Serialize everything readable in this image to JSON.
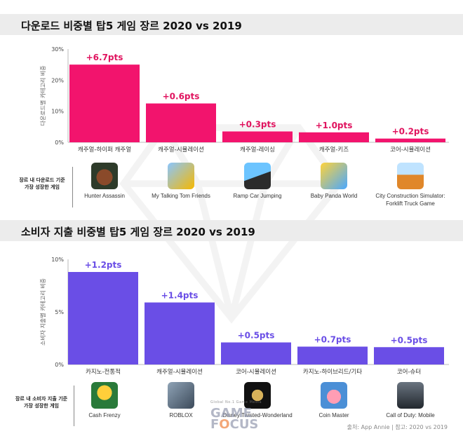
{
  "chart_data": [
    {
      "type": "bar",
      "title": "다운로드 비중별 탑5 게임 장르 2020 vs 2019",
      "ylabel": "다운로드별 카테고리 비중",
      "ylim": [
        0,
        30
      ],
      "yticks": [
        "0%",
        "10%",
        "20%",
        "30%"
      ],
      "categories": [
        "캐주얼-하이퍼 캐주얼",
        "캐주얼-시뮬레이션",
        "캐주얼-레이싱",
        "캐주얼-키즈",
        "코어-시뮬레이션"
      ],
      "values": [
        25,
        12.5,
        3.5,
        3.2,
        1.2
      ],
      "data_labels": [
        "+6.7pts",
        "+0.6pts",
        "+0.3pts",
        "+1.0pts",
        "+0.2pts"
      ],
      "color": "#f2146d",
      "label_color": "#e0145f",
      "grid": false,
      "growth_label": "장르 내 다운로드 기준\n가장 성장한 게임",
      "games": [
        "Hunter Assassin",
        "My Talking Tom Friends",
        "Ramp Car Jumping",
        "Baby Panda World",
        "City Construction Simulator: Forklift Truck Game"
      ]
    },
    {
      "type": "bar",
      "title": "소비자 지출 비중별 탑5 게임 장르 2020 vs 2019",
      "ylabel": "소비자 지출별 카테고리 비중",
      "ylim": [
        0,
        10
      ],
      "yticks": [
        "0%",
        "5%",
        "10%"
      ],
      "categories": [
        "카지노-전통적",
        "캐주얼-시뮬레이션",
        "코어-시뮬레이션",
        "카지노-하이브리드/기타",
        "코어-슈터"
      ],
      "values": [
        8.8,
        5.9,
        2.1,
        1.7,
        1.65
      ],
      "data_labels": [
        "+1.2pts",
        "+1.4pts",
        "+0.5pts",
        "+0.7pts",
        "+0.5pts"
      ],
      "color": "#6a4ee6",
      "label_color": "#6a4ee6",
      "grid": false,
      "growth_label": "장르 내 소비자 지출 기준\n가장 성장한 게임",
      "games": [
        "Cash Frenzy",
        "ROBLOX",
        "Disney Twisted-Wonderland",
        "Coin Master",
        "Call of Duty: Mobile"
      ]
    }
  ],
  "source": "출처: App Annie | 참고: 2020 vs 2019",
  "logo": {
    "main_a": "GAME",
    "main_b": "F",
    "main_o": "O",
    "main_c": "CUS",
    "sub": "Global No.1 Game Media"
  },
  "icons": [
    "hunter-assassin-icon",
    "talking-tom-icon",
    "ramp-car-icon",
    "baby-panda-icon",
    "forklift-icon",
    "cash-frenzy-icon",
    "roblox-icon",
    "twisted-wonderland-icon",
    "coin-master-icon",
    "call-of-duty-icon"
  ]
}
